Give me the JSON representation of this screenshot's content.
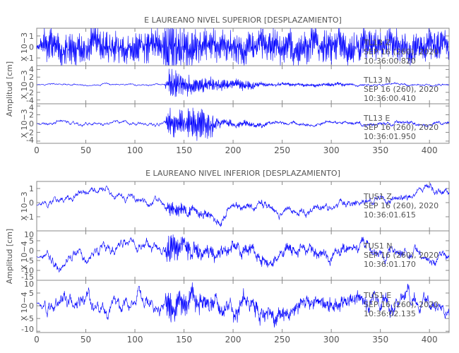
{
  "chart_data": [
    {
      "type": "line",
      "title": "E LAUREANO NIVEL SUPERIOR [DESPLAZAMIENTO]",
      "ylabel": "Amplitud [cm]",
      "xlim": [
        0,
        420
      ],
      "xticks": [
        0,
        50,
        100,
        150,
        200,
        250,
        300,
        350,
        400
      ],
      "panels": [
        {
          "component": "TL13  Z",
          "date": "SEP 16 (260), 2020",
          "time": "10:36:00.820",
          "scale": "X 10−3",
          "ylim": [
            -1.7,
            1.7
          ],
          "yticks": [
            -1,
            0,
            1
          ],
          "base_amp": 0.45,
          "burst_amp": 1.3,
          "envelope": [
            [
              0,
              0.1
            ],
            [
              10,
              1
            ],
            [
              128,
              1
            ],
            [
              135,
              2.2
            ],
            [
              150,
              1.2
            ],
            [
              180,
              1
            ],
            [
              420,
              1
            ]
          ],
          "trend": [
            [
              0,
              0
            ],
            [
              420,
              0
            ]
          ]
        },
        {
          "component": "TL13  N",
          "date": "SEP 16 (260), 2020",
          "time": "10:36:00.410",
          "scale": "X 10−3",
          "ylim": [
            -5,
            5
          ],
          "yticks": [
            -4,
            -2,
            0,
            2,
            4
          ],
          "base_amp": 0.25,
          "burst_amp": 3.8,
          "envelope": [
            [
              0,
              0
            ],
            [
              130,
              0
            ],
            [
              135,
              1
            ],
            [
              150,
              0.7
            ],
            [
              175,
              0.45
            ],
            [
              200,
              0.3
            ],
            [
              215,
              0.35
            ],
            [
              235,
              0.08
            ],
            [
              300,
              0.12
            ],
            [
              330,
              0.03
            ],
            [
              420,
              0.02
            ]
          ],
          "trend": [
            [
              0,
              0
            ],
            [
              420,
              0
            ]
          ]
        },
        {
          "component": "TL13  E",
          "date": "SEP 16 (260), 2020",
          "time": "10:36:01.950",
          "scale": "X 10−3",
          "ylim": [
            -4.5,
            4.5
          ],
          "yticks": [
            -4,
            -2,
            0,
            2,
            4
          ],
          "base_amp": 0.45,
          "burst_amp": 3.6,
          "envelope": [
            [
              0,
              0
            ],
            [
              130,
              0
            ],
            [
              135,
              0.9
            ],
            [
              160,
              1
            ],
            [
              178,
              0.8
            ],
            [
              185,
              0.2
            ],
            [
              215,
              0.15
            ],
            [
              240,
              0.05
            ],
            [
              420,
              0.03
            ]
          ],
          "trend": [
            [
              0,
              0
            ],
            [
              420,
              0
            ]
          ]
        }
      ]
    },
    {
      "type": "line",
      "title": "E LAUREANO NIVEL INFERIOR [DESPLAZAMIENTO]",
      "ylabel": "Amplitud [cm]",
      "xlim": [
        0,
        420
      ],
      "xticks": [
        0,
        50,
        100,
        150,
        200,
        250,
        300,
        350,
        400
      ],
      "panels": [
        {
          "component": "TUS1  Z",
          "date": "SEP 16 (260), 2020",
          "time": "10:36:01.615",
          "scale": "X 10−3",
          "ylim": [
            -2,
            1.5
          ],
          "yticks": [
            -1,
            0,
            1
          ],
          "base_amp": 0.3,
          "burst_amp": 0.5,
          "envelope": [
            [
              0,
              0
            ],
            [
              130,
              0
            ],
            [
              135,
              1
            ],
            [
              160,
              0.5
            ],
            [
              200,
              0.2
            ],
            [
              420,
              0.1
            ]
          ],
          "trend": [
            [
              0,
              -0.2
            ],
            [
              14,
              -0.2
            ],
            [
              25,
              0.5
            ],
            [
              60,
              0.8
            ],
            [
              90,
              0.5
            ],
            [
              120,
              -0.2
            ],
            [
              160,
              -0.6
            ],
            [
              188,
              -1.5
            ],
            [
              195,
              -0.2
            ],
            [
              260,
              -0.5
            ],
            [
              290,
              -0.7
            ],
            [
              310,
              0
            ],
            [
              340,
              0
            ],
            [
              370,
              0.4
            ],
            [
              403,
              1
            ],
            [
              410,
              0.8
            ],
            [
              420,
              0.8
            ]
          ]
        },
        {
          "component": "TUS1  N",
          "date": "SEP 16 (260), 2020",
          "time": "10:36:01.170",
          "scale": "X 10−4",
          "ylim": [
            -15,
            10
          ],
          "yticks": [
            -15,
            -10,
            -5,
            0,
            5,
            10
          ],
          "base_amp": 3,
          "burst_amp": 5,
          "envelope": [
            [
              0,
              0
            ],
            [
              130,
              0
            ],
            [
              133,
              1.6
            ],
            [
              150,
              0.8
            ],
            [
              180,
              0.4
            ],
            [
              420,
              0.1
            ]
          ],
          "trend": [
            [
              0,
              -3
            ],
            [
              12,
              -3.5
            ],
            [
              20,
              -8
            ],
            [
              40,
              -4
            ],
            [
              55,
              -4
            ],
            [
              65,
              2
            ],
            [
              100,
              3
            ],
            [
              150,
              1
            ],
            [
              220,
              0
            ],
            [
              230,
              -4
            ],
            [
              280,
              1
            ],
            [
              300,
              -1
            ],
            [
              330,
              2
            ],
            [
              360,
              -2
            ],
            [
              400,
              -2
            ],
            [
              420,
              -3
            ]
          ]
        },
        {
          "component": "TUS1  E",
          "date": "SEP 16 (260), 2020",
          "time": "10:36:02.135",
          "scale": "X 10−4",
          "ylim": [
            -10.5,
            10
          ],
          "yticks": [
            -10,
            -5,
            0,
            5,
            10
          ],
          "base_amp": 3.5,
          "burst_amp": 4,
          "envelope": [
            [
              0,
              0
            ],
            [
              130,
              0
            ],
            [
              133,
              1.5
            ],
            [
              150,
              1
            ],
            [
              180,
              0.5
            ],
            [
              420,
              0.2
            ]
          ],
          "trend": [
            [
              0,
              1
            ],
            [
              12,
              1
            ],
            [
              30,
              4
            ],
            [
              50,
              0
            ],
            [
              80,
              1
            ],
            [
              130,
              0
            ],
            [
              200,
              1
            ],
            [
              240,
              -3
            ],
            [
              260,
              0
            ],
            [
              300,
              2
            ],
            [
              420,
              0
            ]
          ]
        }
      ]
    }
  ]
}
